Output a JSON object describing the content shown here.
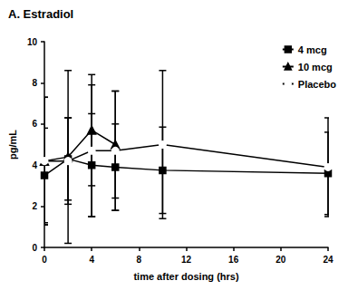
{
  "chart_data": {
    "type": "line",
    "title": "A. Estradiol",
    "x_label": "time after dosing (hrs)",
    "y_label": "pg/mL",
    "x": [
      0,
      2,
      4,
      6,
      10,
      24
    ],
    "series": [
      {
        "name": "4 mcg",
        "color": "#000000",
        "marker": "square",
        "line_style": "solid",
        "values": [
          3.5,
          4.3,
          4.0,
          3.9,
          3.75,
          3.6
        ],
        "errors": [
          2.3,
          2.0,
          2.5,
          2.1,
          2.1,
          2.0
        ]
      },
      {
        "name": "10 mcg",
        "color": "#000000",
        "marker": "triangle",
        "line_style": "solid",
        "values": [
          4.2,
          4.4,
          5.7,
          5.0,
          null,
          null
        ],
        "errors": [
          3.1,
          4.2,
          2.7,
          2.6,
          null,
          null
        ]
      },
      {
        "name": "Placebo",
        "color": "#000000",
        "marker": "open_circle",
        "line_style": "solid",
        "values": [
          4.2,
          4.2,
          4.7,
          4.7,
          5.0,
          3.9
        ],
        "errors": [
          3.1,
          2.1,
          3.2,
          2.9,
          3.6,
          2.4
        ]
      }
    ],
    "xlim": [
      0,
      24
    ],
    "xticks": [
      0,
      4,
      8,
      12,
      16,
      20,
      24
    ],
    "ylim": [
      0,
      10
    ],
    "yticks": [
      0,
      2,
      4,
      6,
      8,
      10
    ],
    "grid": false,
    "legend": "upper right"
  }
}
